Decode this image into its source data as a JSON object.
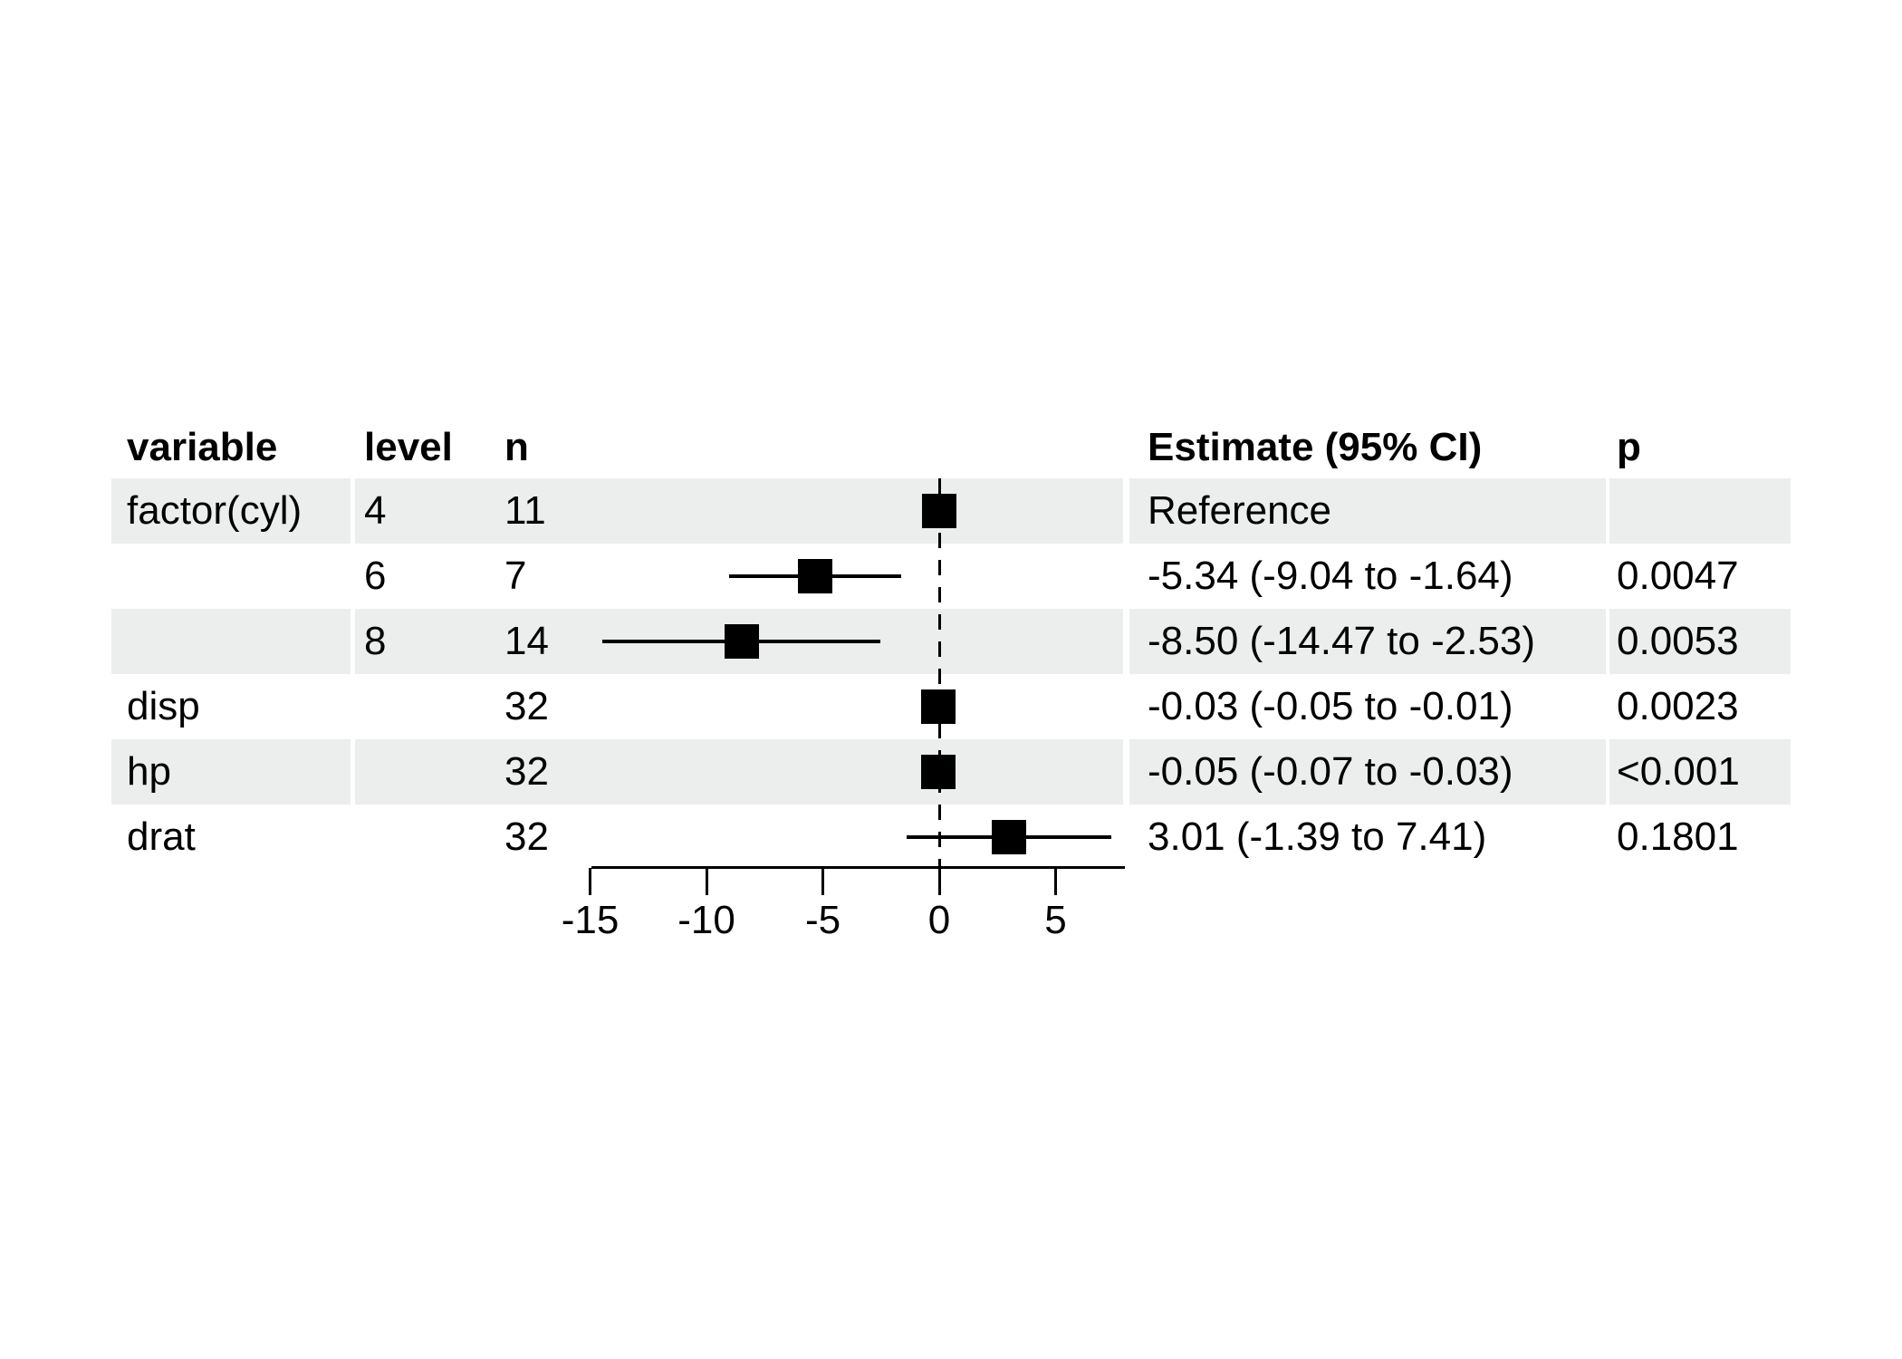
{
  "figure": {
    "kind": "forest-plot-regression-table",
    "background": "#ffffff"
  },
  "chart_data": {
    "type": "forest",
    "title": "",
    "legend": "none",
    "grid": "off",
    "header": {
      "variable": "variable",
      "level": "level",
      "n": "n",
      "estimate": "Estimate (95% CI)",
      "p": "p"
    },
    "rows": [
      {
        "variable": "factor(cyl)",
        "level": "4",
        "n": "11",
        "estimate_label": "Reference",
        "p": "",
        "estimate": 0,
        "ci_low": null,
        "ci_high": null,
        "reference": true,
        "shaded": true
      },
      {
        "variable": "",
        "level": "6",
        "n": "7",
        "estimate_label": "-5.34 (-9.04 to -1.64)",
        "p": "0.0047",
        "estimate": -5.34,
        "ci_low": -9.04,
        "ci_high": -1.64,
        "reference": false,
        "shaded": false
      },
      {
        "variable": "",
        "level": "8",
        "n": "14",
        "estimate_label": "-8.50 (-14.47 to -2.53)",
        "p": "0.0053",
        "estimate": -8.5,
        "ci_low": -14.47,
        "ci_high": -2.53,
        "reference": false,
        "shaded": true
      },
      {
        "variable": "disp",
        "level": "",
        "n": "32",
        "estimate_label": "-0.03 (-0.05 to -0.01)",
        "p": "0.0023",
        "estimate": -0.03,
        "ci_low": -0.05,
        "ci_high": -0.01,
        "reference": false,
        "shaded": false
      },
      {
        "variable": "hp",
        "level": "",
        "n": "32",
        "estimate_label": "-0.05 (-0.07 to -0.03)",
        "p": "<0.001",
        "estimate": -0.05,
        "ci_low": -0.07,
        "ci_high": -0.03,
        "reference": false,
        "shaded": true
      },
      {
        "variable": "drat",
        "level": "",
        "n": "32",
        "estimate_label": "3.01 (-1.39 to 7.41)",
        "p": "0.1801",
        "estimate": 3.01,
        "ci_low": -1.39,
        "ci_high": 7.41,
        "reference": false,
        "shaded": false
      }
    ],
    "x_axis": {
      "ticks": [
        -15,
        -10,
        -5,
        0,
        5
      ],
      "range": [
        -15,
        8
      ],
      "reference_line": 0,
      "line_style": "solid",
      "reference_line_style": "dashed"
    },
    "marker": "square",
    "colors": {
      "ink": "#000000",
      "row_stripe": "#ebeeec",
      "background": "#ffffff"
    }
  }
}
